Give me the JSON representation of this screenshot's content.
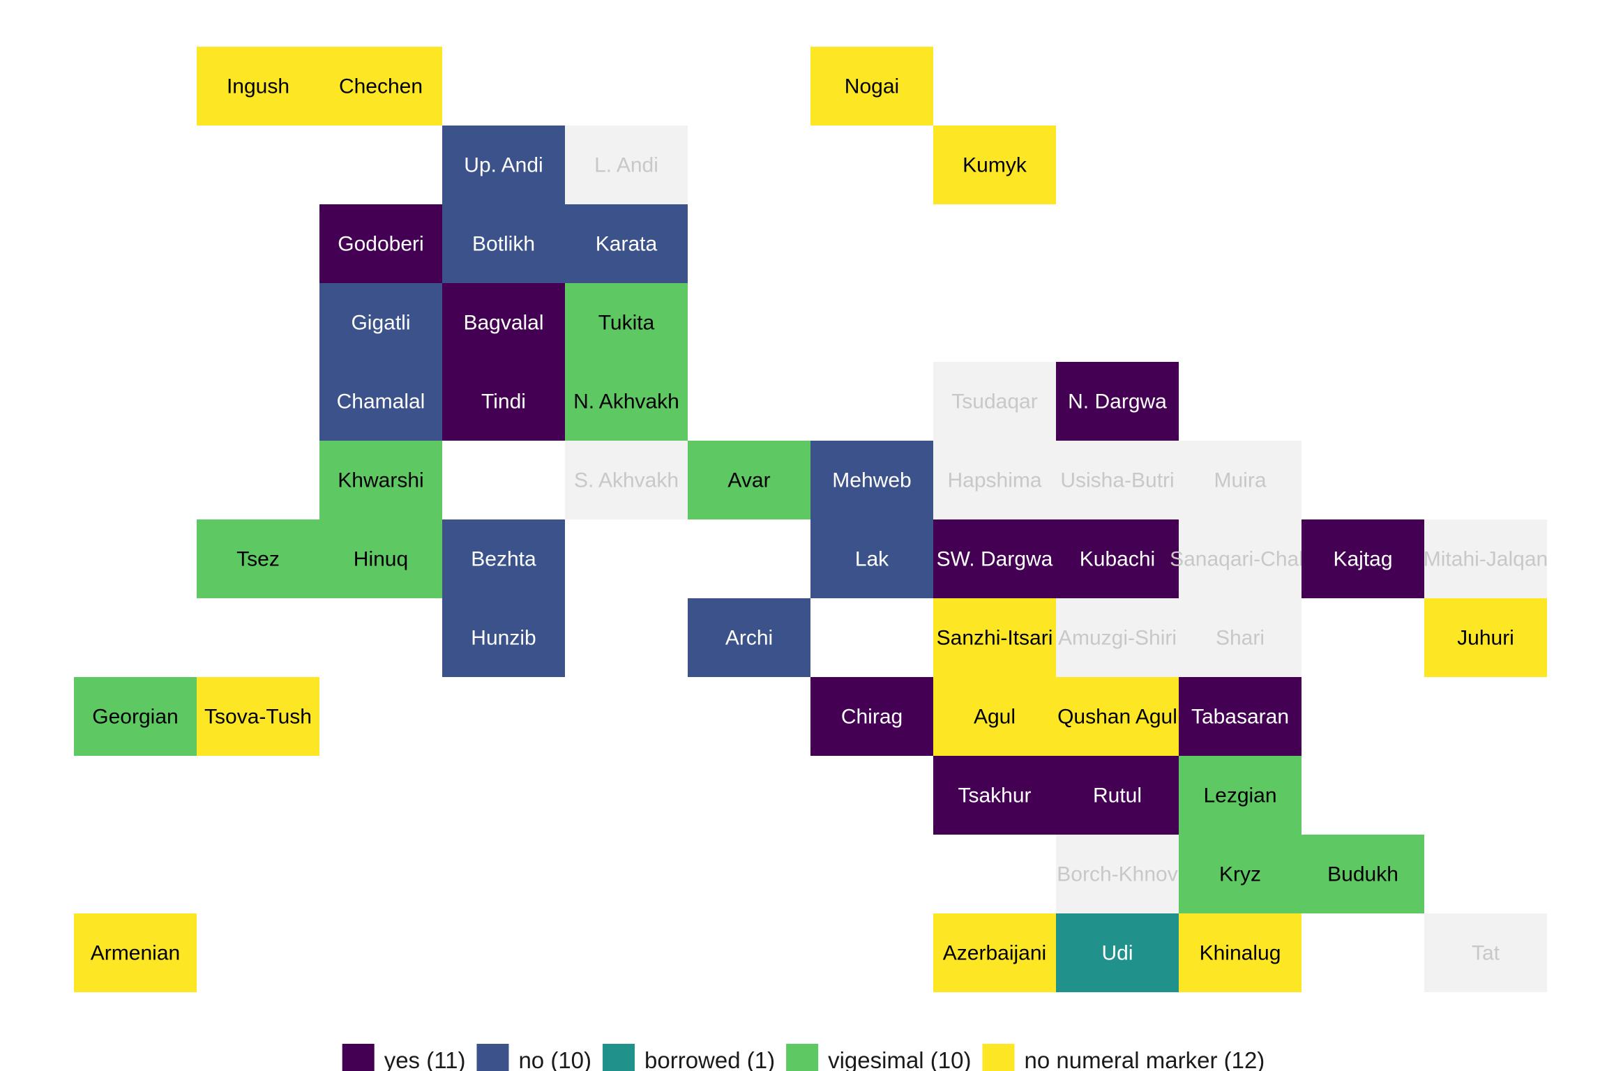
{
  "chart_data": {
    "type": "heatmap",
    "title": "",
    "xlabel": "",
    "ylabel": "",
    "grid": false,
    "legend_placement": "bottom",
    "categories": [
      {
        "key": "yes",
        "label": "yes (11)",
        "color": "#440154",
        "text_color": "#ffffff"
      },
      {
        "key": "no",
        "label": "no (10)",
        "color": "#3b528b",
        "text_color": "#ffffff"
      },
      {
        "key": "borrowed",
        "label": "borrowed (1)",
        "color": "#21918c",
        "text_color": "#ffffff"
      },
      {
        "key": "vigesimal",
        "label": "vigesimal (10)",
        "color": "#5ec962",
        "text_color": "#000000"
      },
      {
        "key": "none",
        "label": "no numeral marker (12)",
        "color": "#fde725",
        "text_color": "#000000"
      }
    ],
    "no_data": {
      "color": "#f2f2f2",
      "text_color": "#c8c8c8"
    },
    "tiles": [
      {
        "name": "Ingush",
        "col": 1,
        "row": 0,
        "value": "none"
      },
      {
        "name": "Chechen",
        "col": 2,
        "row": 0,
        "value": "none"
      },
      {
        "name": "Nogai",
        "col": 6,
        "row": 0,
        "value": "none"
      },
      {
        "name": "Up. Andi",
        "col": 3,
        "row": 1,
        "value": "no"
      },
      {
        "name": "L. Andi",
        "col": 4,
        "row": 1,
        "value": null
      },
      {
        "name": "Kumyk",
        "col": 7,
        "row": 1,
        "value": "none"
      },
      {
        "name": "Godoberi",
        "col": 2,
        "row": 2,
        "value": "yes"
      },
      {
        "name": "Botlikh",
        "col": 3,
        "row": 2,
        "value": "no"
      },
      {
        "name": "Karata",
        "col": 4,
        "row": 2,
        "value": "no"
      },
      {
        "name": "Gigatli",
        "col": 2,
        "row": 3,
        "value": "no"
      },
      {
        "name": "Bagvalal",
        "col": 3,
        "row": 3,
        "value": "yes"
      },
      {
        "name": "Tukita",
        "col": 4,
        "row": 3,
        "value": "vigesimal"
      },
      {
        "name": "Chamalal",
        "col": 2,
        "row": 4,
        "value": "no"
      },
      {
        "name": "Tindi",
        "col": 3,
        "row": 4,
        "value": "yes"
      },
      {
        "name": "N. Akhvakh",
        "col": 4,
        "row": 4,
        "value": "vigesimal"
      },
      {
        "name": "Tsudaqar",
        "col": 7,
        "row": 4,
        "value": null
      },
      {
        "name": "N. Dargwa",
        "col": 8,
        "row": 4,
        "value": "yes"
      },
      {
        "name": "Khwarshi",
        "col": 2,
        "row": 5,
        "value": "vigesimal"
      },
      {
        "name": "S. Akhvakh",
        "col": 4,
        "row": 5,
        "value": null
      },
      {
        "name": "Avar",
        "col": 5,
        "row": 5,
        "value": "vigesimal"
      },
      {
        "name": "Mehweb",
        "col": 6,
        "row": 5,
        "value": "no"
      },
      {
        "name": "Hapshima",
        "col": 7,
        "row": 5,
        "value": null
      },
      {
        "name": "Usisha-Butri",
        "col": 8,
        "row": 5,
        "value": null
      },
      {
        "name": "Muira",
        "col": 9,
        "row": 5,
        "value": null
      },
      {
        "name": "Tsez",
        "col": 1,
        "row": 6,
        "value": "vigesimal"
      },
      {
        "name": "Hinuq",
        "col": 2,
        "row": 6,
        "value": "vigesimal"
      },
      {
        "name": "Bezhta",
        "col": 3,
        "row": 6,
        "value": "no"
      },
      {
        "name": "Lak",
        "col": 6,
        "row": 6,
        "value": "no"
      },
      {
        "name": "SW. Dargwa",
        "col": 7,
        "row": 6,
        "value": "yes"
      },
      {
        "name": "Kubachi",
        "col": 8,
        "row": 6,
        "value": "yes"
      },
      {
        "name": "Sanaqari-Chah",
        "col": 9,
        "row": 6,
        "value": null
      },
      {
        "name": "Kajtag",
        "col": 10,
        "row": 6,
        "value": "yes"
      },
      {
        "name": "Mitahi-Jalqan",
        "col": 11,
        "row": 6,
        "value": null
      },
      {
        "name": "Hunzib",
        "col": 3,
        "row": 7,
        "value": "no"
      },
      {
        "name": "Archi",
        "col": 5,
        "row": 7,
        "value": "no"
      },
      {
        "name": "Sanzhi-Itsari",
        "col": 7,
        "row": 7,
        "value": "none"
      },
      {
        "name": "Amuzgi-Shiri",
        "col": 8,
        "row": 7,
        "value": null
      },
      {
        "name": "Shari",
        "col": 9,
        "row": 7,
        "value": null
      },
      {
        "name": "Juhuri",
        "col": 11,
        "row": 7,
        "value": "none"
      },
      {
        "name": "Georgian",
        "col": 0,
        "row": 8,
        "value": "vigesimal"
      },
      {
        "name": "Tsova-Tush",
        "col": 1,
        "row": 8,
        "value": "none"
      },
      {
        "name": "Chirag",
        "col": 6,
        "row": 8,
        "value": "yes"
      },
      {
        "name": "Agul",
        "col": 7,
        "row": 8,
        "value": "none"
      },
      {
        "name": "Qushan Agul",
        "col": 8,
        "row": 8,
        "value": "none"
      },
      {
        "name": "Tabasaran",
        "col": 9,
        "row": 8,
        "value": "yes"
      },
      {
        "name": "Tsakhur",
        "col": 7,
        "row": 9,
        "value": "yes"
      },
      {
        "name": "Rutul",
        "col": 8,
        "row": 9,
        "value": "yes"
      },
      {
        "name": "Lezgian",
        "col": 9,
        "row": 9,
        "value": "vigesimal"
      },
      {
        "name": "Borch-Khnov",
        "col": 8,
        "row": 10,
        "value": null
      },
      {
        "name": "Kryz",
        "col": 9,
        "row": 10,
        "value": "vigesimal"
      },
      {
        "name": "Budukh",
        "col": 10,
        "row": 10,
        "value": "vigesimal"
      },
      {
        "name": "Armenian",
        "col": 0,
        "row": 11,
        "value": "none"
      },
      {
        "name": "Azerbaijani",
        "col": 7,
        "row": 11,
        "value": "none"
      },
      {
        "name": "Udi",
        "col": 8,
        "row": 11,
        "value": "borrowed"
      },
      {
        "name": "Khinalug",
        "col": 9,
        "row": 11,
        "value": "none"
      },
      {
        "name": "Tat",
        "col": 11,
        "row": 11,
        "value": null
      }
    ]
  }
}
